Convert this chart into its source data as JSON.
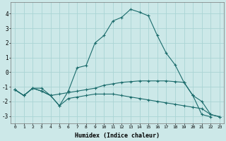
{
  "xlabel": "Humidex (Indice chaleur)",
  "bg_color": "#cce8e8",
  "grid_color": "#aad4d4",
  "line_color": "#1a6b6b",
  "xlim": [
    -0.5,
    23.5
  ],
  "ylim": [
    -3.5,
    4.8
  ],
  "yticks": [
    -3,
    -2,
    -1,
    0,
    1,
    2,
    3,
    4
  ],
  "xticks": [
    0,
    1,
    2,
    3,
    4,
    5,
    6,
    7,
    8,
    9,
    10,
    11,
    12,
    13,
    14,
    15,
    16,
    17,
    18,
    19,
    20,
    21,
    22,
    23
  ],
  "series": [
    {
      "x": [
        0,
        1,
        2,
        3,
        4,
        5,
        6,
        7,
        8,
        9,
        10,
        11,
        12,
        13,
        14,
        15,
        16,
        17,
        18,
        19,
        20,
        21,
        22,
        23
      ],
      "y": [
        -1.2,
        -1.6,
        -1.1,
        -1.1,
        -1.6,
        -2.3,
        -1.3,
        0.3,
        0.45,
        2.0,
        2.5,
        3.5,
        3.75,
        4.3,
        4.1,
        3.85,
        2.5,
        1.3,
        0.5,
        -0.7,
        -1.6,
        -2.9,
        -3.05,
        null
      ],
      "marker": true
    },
    {
      "x": [
        0,
        1,
        2,
        3,
        4,
        5,
        6,
        7,
        8,
        9,
        10,
        11,
        12,
        13,
        14,
        15,
        16,
        17,
        18,
        19,
        20,
        21,
        22,
        23
      ],
      "y": [
        -1.2,
        -1.6,
        -1.1,
        -1.3,
        -1.6,
        -1.5,
        -1.4,
        -1.3,
        -1.2,
        -1.1,
        -0.9,
        -0.8,
        -0.7,
        -0.65,
        -0.6,
        -0.6,
        -0.6,
        -0.6,
        -0.65,
        -0.7,
        -1.6,
        -2.0,
        -2.9,
        -3.05
      ],
      "marker": true
    },
    {
      "x": [
        0,
        1,
        2,
        3,
        4,
        5,
        6,
        7,
        8,
        9,
        10,
        11,
        12,
        13,
        14,
        15,
        16,
        17,
        18,
        19,
        20,
        21,
        22,
        23
      ],
      "y": [
        -1.2,
        -1.6,
        -1.1,
        -1.3,
        -1.6,
        -2.3,
        -1.8,
        -1.7,
        -1.6,
        -1.5,
        -1.5,
        -1.5,
        -1.6,
        -1.7,
        -1.8,
        -1.9,
        -2.0,
        -2.1,
        -2.2,
        -2.3,
        -2.4,
        -2.5,
        -2.9,
        -3.05
      ],
      "marker": true
    }
  ]
}
